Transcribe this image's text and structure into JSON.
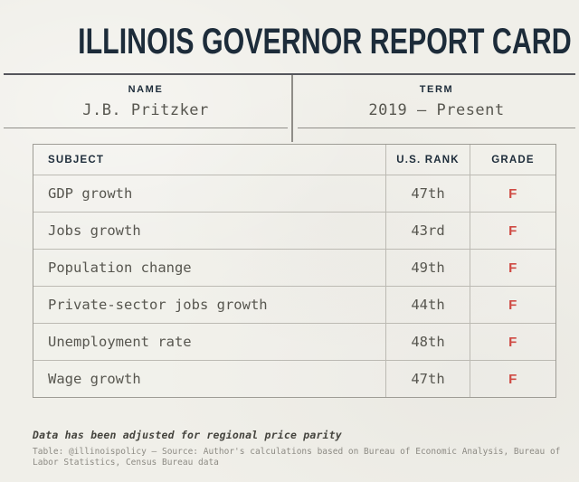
{
  "chart_data": {
    "type": "table",
    "title": "ILLINOIS GOVERNOR REPORT CARD",
    "fields": {
      "name_label": "NAME",
      "name_value": "J.B. Pritzker",
      "term_label": "TERM",
      "term_value": "2019 – Present"
    },
    "columns": [
      "SUBJECT",
      "U.S. RANK",
      "GRADE"
    ],
    "rows": [
      {
        "subject": "GDP growth",
        "rank": "47th",
        "grade": "F"
      },
      {
        "subject": "Jobs growth",
        "rank": "43rd",
        "grade": "F"
      },
      {
        "subject": "Population change",
        "rank": "49th",
        "grade": "F"
      },
      {
        "subject": "Private-sector jobs growth",
        "rank": "44th",
        "grade": "F"
      },
      {
        "subject": "Unemployment rate",
        "rank": "48th",
        "grade": "F"
      },
      {
        "subject": "Wage growth",
        "rank": "47th",
        "grade": "F"
      }
    ],
    "note": "Data has been adjusted for regional price parity",
    "source": "Table: @illinoispolicy – Source: Author's calculations based on Bureau of Economic Analysis, Bureau of Labor Statistics, Census Bureau data"
  },
  "colors": {
    "background": "#f0efe9",
    "ink_navy": "#1d2c3a",
    "value_gray": "#57564f",
    "grade_red": "#cf4a43",
    "rule_dark": "#55565c",
    "line_gray": "#8f8d88",
    "table_border": "#9e9c95",
    "cell_border": "#bcbab3"
  }
}
